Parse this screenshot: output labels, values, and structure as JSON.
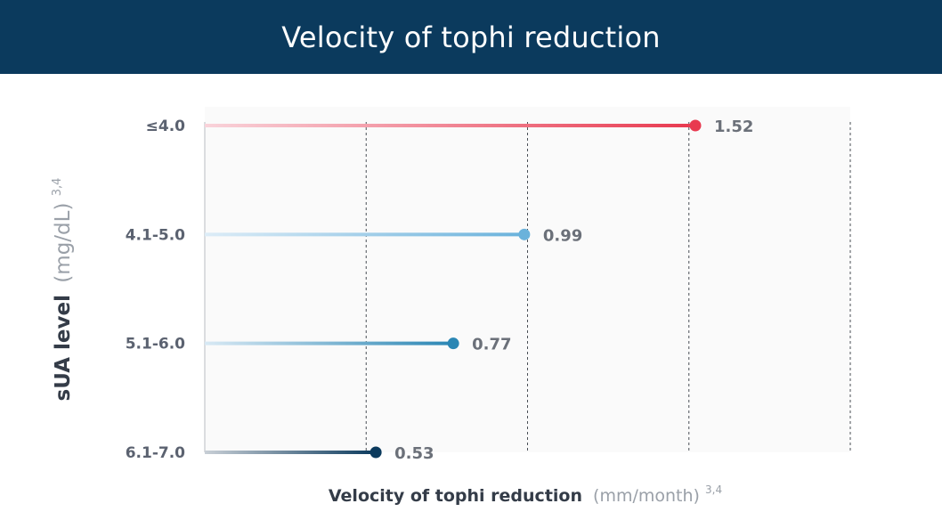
{
  "chart_data": {
    "type": "lollipop",
    "title": "Velocity of tophi reduction",
    "xlabel": "Velocity of tophi reduction",
    "xlabel_unit": "(mm/month)",
    "xlabel_sup": "3,4",
    "ylabel": "sUA level",
    "ylabel_unit": "(mg/dL)",
    "ylabel_sup": "3,4",
    "xlim": [
      0,
      2
    ],
    "x_gridlines": [
      0.5,
      1.0,
      1.5,
      2.0
    ],
    "grid": true,
    "categories": [
      "≤4.0",
      "4.1-5.0",
      "5.1-6.0",
      "6.1-7.0"
    ],
    "values": [
      1.52,
      0.99,
      0.77,
      0.53
    ],
    "value_labels": [
      "1.52",
      "0.99",
      "0.77",
      "0.53"
    ],
    "colors": [
      "#e8394f",
      "#6ab2db",
      "#2a86b4",
      "#0b3a5d"
    ],
    "line_start_colors": [
      "#f9d3da",
      "#dcecf7",
      "#d8e9f4",
      "#c8cfd6"
    ]
  }
}
